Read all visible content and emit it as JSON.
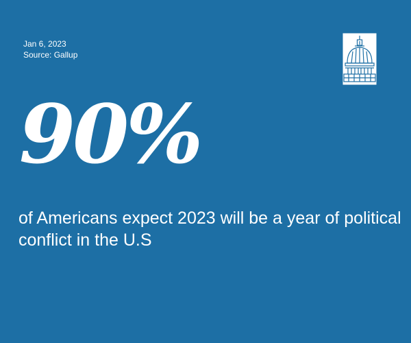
{
  "meta": {
    "date": "Jan 6, 2023",
    "source": "Source: Gallup"
  },
  "headline": {
    "stat": "90%",
    "caption": "of Americans expect 2023 will be a year of political conflict in the U.S"
  },
  "logo": {
    "icon": "capitol-dome-icon"
  },
  "colors": {
    "background": "#1d6fa5",
    "text": "#ffffff"
  }
}
